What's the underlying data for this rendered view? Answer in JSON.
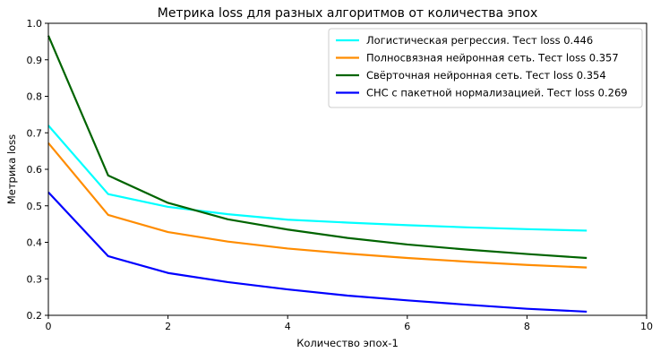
{
  "chart_data": {
    "type": "line",
    "title": "Метрика loss для разных алгоритмов от количества эпох",
    "xlabel": "Количество эпох-1",
    "ylabel": "Метрика loss",
    "xlim": [
      0,
      10
    ],
    "ylim": [
      0.2,
      1.0
    ],
    "xticks": [
      "0",
      "2",
      "4",
      "6",
      "8",
      "10"
    ],
    "yticks": [
      "0.2",
      "0.3",
      "0.4",
      "0.5",
      "0.6",
      "0.7",
      "0.8",
      "0.9",
      "1.0"
    ],
    "grid": false,
    "legend_position": "top-right",
    "x": [
      0,
      1,
      2,
      3,
      4,
      5,
      6,
      7,
      8,
      9
    ],
    "series": [
      {
        "name": "Логистическая регрессия. Тест loss 0.446",
        "color": "#00ffff",
        "values": [
          0.72,
          0.532,
          0.497,
          0.477,
          0.462,
          0.454,
          0.447,
          0.441,
          0.436,
          0.432
        ]
      },
      {
        "name": "Полносвязная нейронная сеть. Тест loss 0.357",
        "color": "#ff8c00",
        "values": [
          0.672,
          0.475,
          0.428,
          0.402,
          0.383,
          0.369,
          0.357,
          0.347,
          0.338,
          0.331
        ]
      },
      {
        "name": "Свёрточная нейронная сеть. Тест loss 0.354",
        "color": "#006400",
        "values": [
          0.966,
          0.583,
          0.508,
          0.463,
          0.435,
          0.412,
          0.394,
          0.38,
          0.368,
          0.357
        ]
      },
      {
        "name": "СНС с пакетной нормализацией. Тест loss 0.269",
        "color": "#0000ff",
        "values": [
          0.537,
          0.362,
          0.316,
          0.291,
          0.271,
          0.254,
          0.241,
          0.229,
          0.218,
          0.21
        ]
      }
    ]
  }
}
